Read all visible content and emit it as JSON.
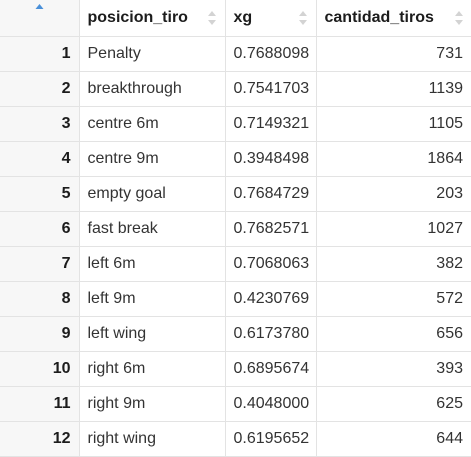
{
  "table": {
    "columns": [
      {
        "label": "",
        "sort": "ascending"
      },
      {
        "label": "posicion_tiro",
        "sort": "none"
      },
      {
        "label": "xg",
        "sort": "none"
      },
      {
        "label": "cantidad_tiros",
        "sort": "none"
      }
    ],
    "rows": [
      {
        "index": "1",
        "posicion_tiro": "Penalty",
        "xg": "0.7688098",
        "cantidad_tiros": "731"
      },
      {
        "index": "2",
        "posicion_tiro": "breakthrough",
        "xg": "0.7541703",
        "cantidad_tiros": "1139"
      },
      {
        "index": "3",
        "posicion_tiro": "centre 6m",
        "xg": "0.7149321",
        "cantidad_tiros": "1105"
      },
      {
        "index": "4",
        "posicion_tiro": "centre 9m",
        "xg": "0.3948498",
        "cantidad_tiros": "1864"
      },
      {
        "index": "5",
        "posicion_tiro": "empty goal",
        "xg": "0.7684729",
        "cantidad_tiros": "203"
      },
      {
        "index": "6",
        "posicion_tiro": "fast break",
        "xg": "0.7682571",
        "cantidad_tiros": "1027"
      },
      {
        "index": "7",
        "posicion_tiro": "left 6m",
        "xg": "0.7068063",
        "cantidad_tiros": "382"
      },
      {
        "index": "8",
        "posicion_tiro": "left 9m",
        "xg": "0.4230769",
        "cantidad_tiros": "572"
      },
      {
        "index": "9",
        "posicion_tiro": "left wing",
        "xg": "0.6173780",
        "cantidad_tiros": "656"
      },
      {
        "index": "10",
        "posicion_tiro": "right 6m",
        "xg": "0.6895674",
        "cantidad_tiros": "393"
      },
      {
        "index": "11",
        "posicion_tiro": "right 9m",
        "xg": "0.4048000",
        "cantidad_tiros": "625"
      },
      {
        "index": "12",
        "posicion_tiro": "right wing",
        "xg": "0.6195652",
        "cantidad_tiros": "644"
      }
    ]
  },
  "colors": {
    "active_sort": "#4a90d9",
    "inactive_sort": "#d3d3d3",
    "index_background": "#f7f7f7",
    "border": "#e3e3e3"
  },
  "icons": {
    "sort_ascending": "sort-ascending-icon",
    "sort_neutral": "sort-neutral-icon"
  }
}
